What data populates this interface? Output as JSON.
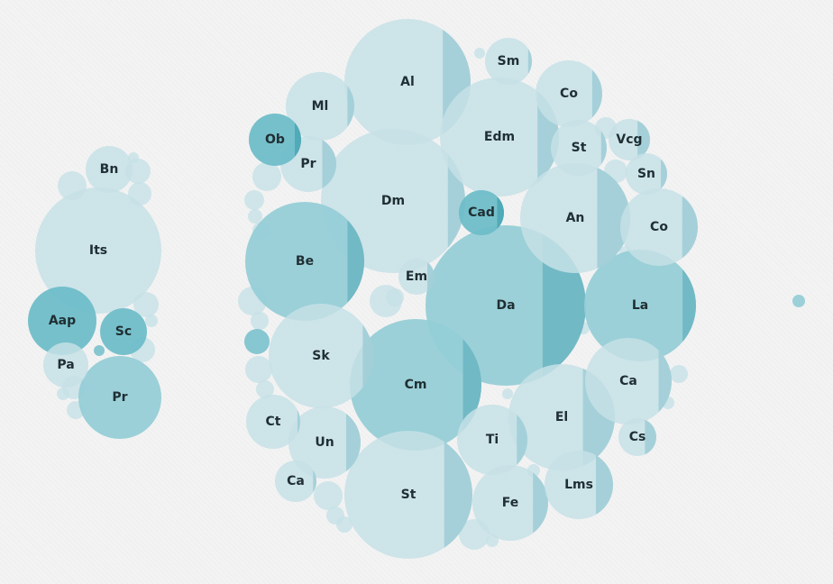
{
  "chart_data": {
    "type": "bubble",
    "colors": {
      "light": "#c6e1e6",
      "medium": "#94cdd6",
      "dark": "#6bbcc8",
      "lightShade": "#9ecdd6",
      "mediumShade": "#6ab5c2",
      "darkShade": "#4aa6b4"
    },
    "clusters": [
      {
        "name": "",
        "bubbles": [
          {
            "label": "Bn",
            "tone": "light",
            "share": 0
          },
          {
            "label": "Its",
            "tone": "light",
            "share": 0
          },
          {
            "label": "Aap",
            "tone": "dark",
            "share": 0
          },
          {
            "label": "Sc",
            "tone": "dark",
            "share": 0
          },
          {
            "label": "Pa",
            "tone": "light",
            "share": 0
          },
          {
            "label": "Pr",
            "tone": "medium",
            "share": 0
          }
        ]
      },
      {
        "name": "",
        "bubbles": [
          {
            "label": "Al",
            "tone": "light",
            "share": 0.22
          },
          {
            "label": "Sm",
            "tone": "light",
            "share": 0.08
          },
          {
            "label": "Co",
            "tone": "light",
            "share": 0.15
          },
          {
            "label": "Ml",
            "tone": "light",
            "share": 0.1
          },
          {
            "label": "Edm",
            "tone": "light",
            "share": 0.18
          },
          {
            "label": "Ob",
            "tone": "dark",
            "share": 0.12
          },
          {
            "label": "Pr",
            "tone": "light",
            "share": 0.25
          },
          {
            "label": "St",
            "tone": "light",
            "share": 0.1
          },
          {
            "label": "Vcg",
            "tone": "light",
            "share": 0.3
          },
          {
            "label": "Sn",
            "tone": "light",
            "share": 0.15
          },
          {
            "label": "Dm",
            "tone": "light",
            "share": 0.12
          },
          {
            "label": "Cad",
            "tone": "dark",
            "share": 0.15
          },
          {
            "label": "An",
            "tone": "light",
            "share": 0.3
          },
          {
            "label": "Co",
            "tone": "light",
            "share": 0.2
          },
          {
            "label": "Be",
            "tone": "medium",
            "share": 0.14
          },
          {
            "label": "Em",
            "tone": "light",
            "share": 0.2
          },
          {
            "label": "Da",
            "tone": "medium",
            "share": 0.27
          },
          {
            "label": "La",
            "tone": "medium",
            "share": 0.12
          },
          {
            "label": "Sk",
            "tone": "light",
            "share": 0.1
          },
          {
            "label": "Cm",
            "tone": "medium",
            "share": 0.14
          },
          {
            "label": "Ca",
            "tone": "light",
            "share": 0.15
          },
          {
            "label": "El",
            "tone": "light",
            "share": 0.3
          },
          {
            "label": "Ct",
            "tone": "light",
            "share": 0.05
          },
          {
            "label": "Ti",
            "tone": "light",
            "share": 0.15
          },
          {
            "label": "Cs",
            "tone": "light",
            "share": 0.3
          },
          {
            "label": "Un",
            "tone": "light",
            "share": 0.2
          },
          {
            "label": "Ca",
            "tone": "light",
            "share": 0.08
          },
          {
            "label": "St",
            "tone": "light",
            "share": 0.22
          },
          {
            "label": "Fe",
            "tone": "light",
            "share": 0.2
          },
          {
            "label": "Lms",
            "tone": "light",
            "share": 0.25
          }
        ]
      },
      {
        "name": "",
        "bubbles": [
          {
            "label": "",
            "tone": "medium",
            "share": 0
          }
        ]
      }
    ]
  }
}
